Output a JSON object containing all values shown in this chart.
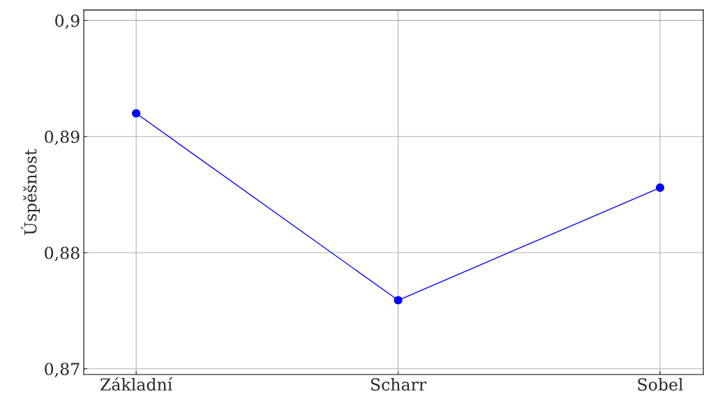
{
  "chart_data": {
    "type": "line",
    "ylabel": "Úspěšnost",
    "categories": [
      "Základní",
      "Scharr",
      "Sobel"
    ],
    "series": [
      {
        "color": "#0000ff",
        "values": [
          0.892,
          0.8759,
          0.8856
        ]
      }
    ],
    "ylim": [
      0.8695,
      0.9009
    ],
    "yticks": [
      {
        "value": 0.87,
        "label": "0,87"
      },
      {
        "value": 0.88,
        "label": "0,88"
      },
      {
        "value": 0.89,
        "label": "0,89"
      },
      {
        "value": 0.9,
        "label": "0,9"
      }
    ],
    "grid": true,
    "marker": "circle",
    "line_style": "solid"
  }
}
